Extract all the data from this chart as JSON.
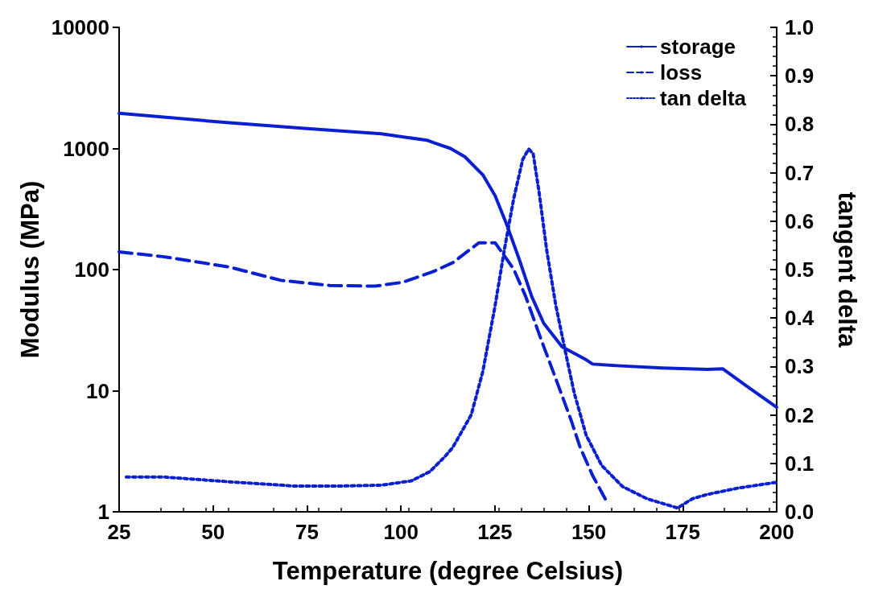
{
  "chart_data": {
    "type": "line",
    "xlabel": "Temperature (degree Celsius)",
    "ylabel": "Modulus (MPa)",
    "y2label": "tangent delta",
    "xlim": [
      25,
      200
    ],
    "xticks": [
      25,
      50,
      75,
      100,
      125,
      150,
      175,
      200
    ],
    "ylim": [
      1,
      10000
    ],
    "yticks": [
      1,
      10,
      100,
      1000,
      10000
    ],
    "log": "y",
    "y2lim": [
      0,
      1
    ],
    "y2ticks": [
      {
        "value": 0,
        "label": "0.0"
      },
      {
        "value": 0.1,
        "label": "0.1"
      },
      {
        "value": 0.2,
        "label": "0.2"
      },
      {
        "value": 0.3,
        "label": "0.3"
      },
      {
        "value": 0.4,
        "label": "0.4"
      },
      {
        "value": 0.5,
        "label": "0.5"
      },
      {
        "value": 0.6,
        "label": "0.6"
      },
      {
        "value": 0.7,
        "label": "0.7"
      },
      {
        "value": 0.8,
        "label": "0.8"
      },
      {
        "value": 0.9,
        "label": "0.9"
      },
      {
        "value": 1,
        "label": "1.0"
      }
    ],
    "grid": false,
    "legend": "top right",
    "marker": "none",
    "series": [
      {
        "name": "storage",
        "color": "#0a1fd0",
        "line_style": "solid",
        "x": [
          25,
          54.3,
          75,
          94.8,
          106.9,
          108.9,
          113.2,
          117,
          121.8,
          125.1,
          128.3,
          131.5,
          134.8,
          138,
          142.9,
          149.3,
          151,
          157.4,
          169.5,
          181.6,
          185.6,
          192.2,
          200
        ],
        "values": [
          1950,
          1630,
          1460,
          1320,
          1170,
          1110,
          1000,
          855,
          605,
          405,
          229,
          121,
          60,
          36,
          23,
          18,
          16.6,
          16.1,
          15.4,
          15,
          15.2,
          10.8,
          7.3
        ]
      },
      {
        "name": "loss",
        "color": "#0a1fd0",
        "line_style": "dashed",
        "x": [
          25,
          36.6,
          54.3,
          68.1,
          81,
          93.1,
          100.4,
          108.5,
          113.8,
          120.7,
          125.1,
          130,
          133.2,
          137.2,
          140.5,
          145.3,
          147.7,
          151,
          154.6
        ],
        "values": [
          140,
          128,
          105,
          81.5,
          74,
          73,
          78.5,
          96,
          114,
          166,
          166,
          101,
          60,
          27,
          14.4,
          5.7,
          3.4,
          2.0,
          1.24
        ]
      },
      {
        "name": "tan delta",
        "color": "#0a1fd0",
        "line_style": "dotted",
        "axis": "y2",
        "x": [
          26.9,
          36.6,
          54.3,
          72,
          82.6,
          94.8,
          102.8,
          107.7,
          111.7,
          113.8,
          118.7,
          121.8,
          125.1,
          127.5,
          130,
          132.4,
          134,
          135.2,
          136.8,
          138.8,
          141.2,
          143.7,
          146.1,
          149.3,
          153.4,
          159,
          165.5,
          173.6,
          177.6,
          181.6,
          189.7,
          200
        ],
        "values": [
          0.072,
          0.072,
          0.062,
          0.053,
          0.053,
          0.055,
          0.064,
          0.083,
          0.114,
          0.133,
          0.2,
          0.29,
          0.427,
          0.54,
          0.646,
          0.727,
          0.749,
          0.739,
          0.658,
          0.54,
          0.427,
          0.333,
          0.246,
          0.158,
          0.096,
          0.052,
          0.027,
          0.008,
          0.027,
          0.036,
          0.049,
          0.061
        ]
      }
    ]
  }
}
